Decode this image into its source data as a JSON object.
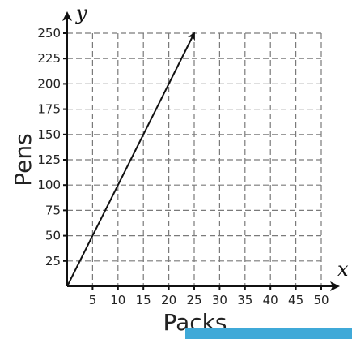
{
  "chart_data": {
    "type": "line",
    "xlabel": "Packs",
    "ylabel": "Pens",
    "x_axis_letter": "x",
    "y_axis_letter": "y",
    "xlim": [
      0,
      50
    ],
    "ylim": [
      0,
      250
    ],
    "x_ticks": [
      "5",
      "10",
      "15",
      "20",
      "25",
      "30",
      "35",
      "40",
      "45",
      "50"
    ],
    "y_ticks": [
      "25",
      "50",
      "75",
      "100",
      "125",
      "150",
      "175",
      "200",
      "225",
      "250"
    ],
    "grid": true,
    "series": [
      {
        "x": [
          0,
          25
        ],
        "y": [
          0,
          250
        ],
        "end_marker": "arrow"
      }
    ],
    "colors": {
      "line": "#111111",
      "grid": "#7a7a7a",
      "footer_bar": "#3fa9d8"
    }
  }
}
